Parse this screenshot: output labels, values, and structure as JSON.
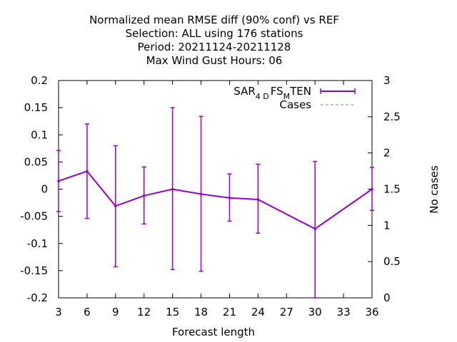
{
  "chart_data": {
    "type": "line",
    "title_lines": [
      "Normalized mean RMSE diff (90% conf) vs REF",
      "Selection: ALL using   176 stations",
      "Period: 20211124-20211128",
      "Max Wind Gust   Hours:  06"
    ],
    "xlabel": "Forecast length",
    "ylabel": "",
    "y2label": "No cases",
    "xlim": [
      3,
      36
    ],
    "ylim": [
      -0.2,
      0.2
    ],
    "y2lim": [
      0,
      3
    ],
    "xticks": [
      "3",
      "6",
      "9",
      "12",
      "15",
      "18",
      "21",
      "24",
      "27",
      "30",
      "33",
      "36"
    ],
    "yticks": [
      "0.2",
      "0.15",
      "0.1",
      "0.05",
      "0",
      "-0.05",
      "-0.1",
      "-0.15",
      "-0.2"
    ],
    "y2ticks": [
      "3",
      "2.5",
      "2",
      "1.5",
      "1",
      "0.5",
      "0"
    ],
    "grid": false,
    "legend_position": "top-right",
    "series": [
      {
        "name": "SAR_4D FS_M TEN",
        "name_parts": {
          "a": "SAR",
          "a_sub": "4 D",
          "b": "FS",
          "b_sub": "M",
          "c": "TEN"
        },
        "color": "#9400d3",
        "style": "line-errorbars",
        "x": [
          3,
          6,
          9,
          12,
          15,
          18,
          21,
          24,
          30,
          36
        ],
        "y": [
          0.015,
          0.033,
          -0.031,
          -0.012,
          0.0,
          -0.009,
          -0.016,
          -0.019,
          -0.073,
          0.0
        ],
        "err_low": [
          -0.041,
          -0.054,
          -0.143,
          -0.064,
          -0.148,
          -0.151,
          -0.059,
          -0.081,
          -0.2,
          -0.039
        ],
        "err_high": [
          0.071,
          0.12,
          0.08,
          0.041,
          0.15,
          0.134,
          0.028,
          0.046,
          0.051,
          0.04
        ]
      },
      {
        "name": "Cases",
        "color": "#a0a0a0",
        "style": "dashed",
        "axis": "y2",
        "x": [],
        "y": []
      }
    ]
  }
}
